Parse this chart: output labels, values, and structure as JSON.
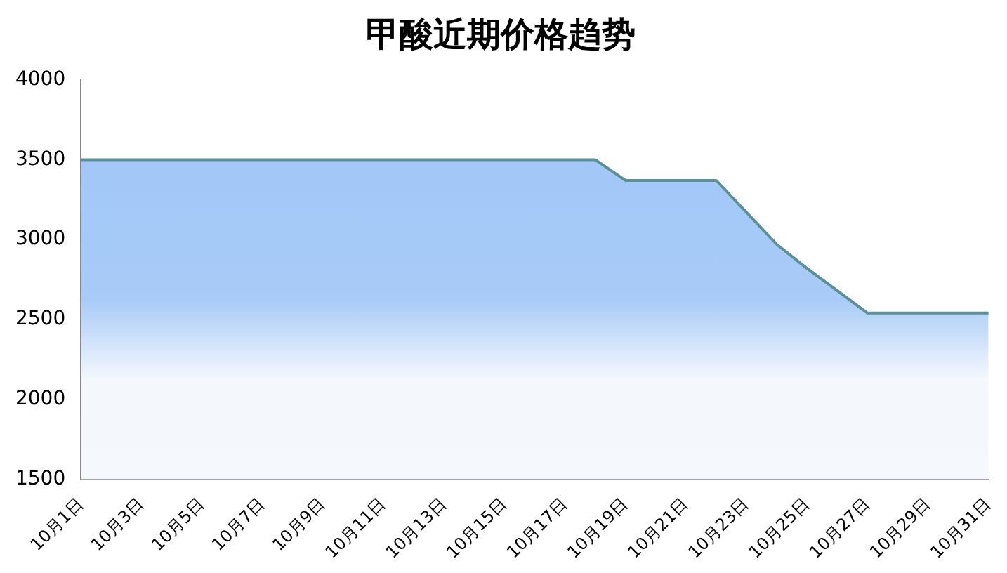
{
  "chart_data": {
    "type": "area",
    "title": "甲酸近期价格趋势",
    "categories": [
      "10月1日",
      null,
      "10月3日",
      null,
      "10月5日",
      null,
      "10月7日",
      null,
      "10月9日",
      null,
      "10月11日",
      null,
      "10月13日",
      null,
      "10月15日",
      null,
      "10月17日",
      null,
      "10月19日",
      null,
      "10月21日",
      null,
      "10月23日",
      null,
      "10月25日",
      null,
      "10月27日",
      null,
      "10月29日",
      null,
      "10月31日"
    ],
    "series": [
      {
        "color": "#5b9097",
        "values": [
          3500,
          3500,
          3500,
          3500,
          3500,
          3500,
          3500,
          3500,
          3500,
          3500,
          3500,
          3500,
          3500,
          3500,
          3500,
          3500,
          3500,
          3500,
          3370,
          3370,
          3370,
          3370,
          3170,
          2970,
          2820,
          2680,
          2540,
          2540,
          2540,
          2540,
          2540
        ]
      }
    ],
    "ylim": [
      1500,
      4000
    ],
    "yticks": [
      1500,
      2000,
      2500,
      3000,
      3500,
      4000
    ],
    "grid": false,
    "legend": false
  }
}
